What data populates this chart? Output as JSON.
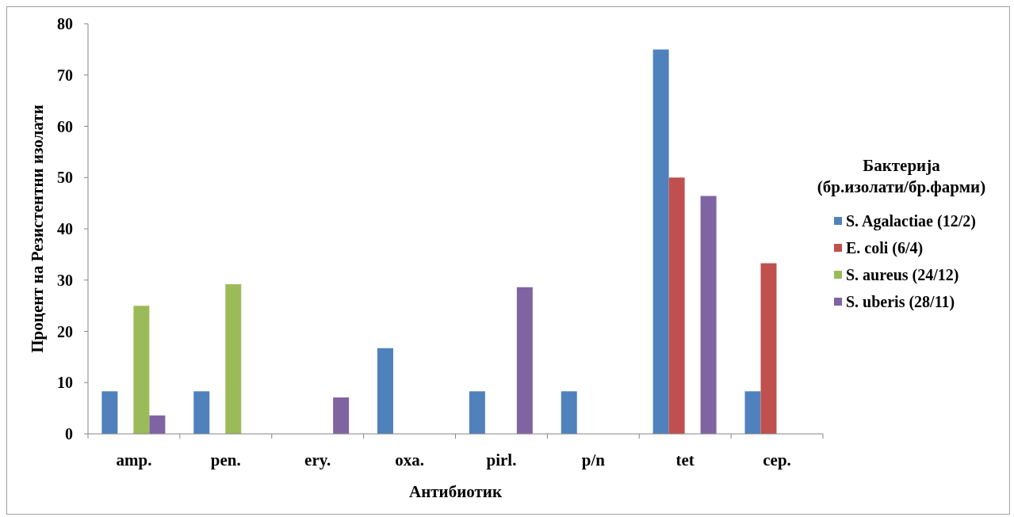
{
  "chart_data": {
    "type": "bar",
    "xlabel": "Антибиотик",
    "ylabel": "Процент на Резистентни изолати",
    "legend_title": "Бактерија (бр.изолати/бр.фарми)",
    "categories": [
      "amp.",
      "pen.",
      "ery.",
      "oxa.",
      "pirl.",
      "p/n",
      "tet",
      "cep."
    ],
    "series": [
      {
        "name": "S. Agalactiae (12/2)",
        "color": "#4f81bd",
        "values": [
          8.3,
          8.3,
          0,
          16.7,
          8.3,
          8.3,
          75,
          8.3
        ]
      },
      {
        "name": "E. coli (6/4)",
        "color": "#c0504d",
        "values": [
          0,
          0,
          0,
          0,
          0,
          0,
          50,
          33.3
        ]
      },
      {
        "name": "S. aureus (24/12)",
        "color": "#9bbb59",
        "values": [
          25,
          29.2,
          0,
          0,
          0,
          0,
          0,
          0
        ]
      },
      {
        "name": "S. uberis (28/11)",
        "color": "#8064a2",
        "values": [
          3.6,
          0,
          7.1,
          0,
          28.6,
          0,
          46.4,
          0
        ]
      }
    ],
    "ylim": [
      0,
      80
    ],
    "yticks": [
      0,
      10,
      20,
      30,
      40,
      50,
      60,
      70,
      80
    ],
    "legend": "right"
  }
}
